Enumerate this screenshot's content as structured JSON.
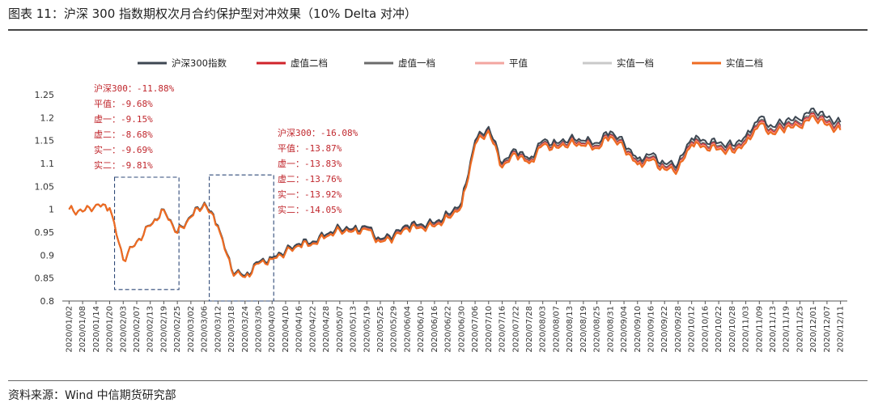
{
  "figure": {
    "title": "图表 11：沪深 300 指数期权次月合约保护型对冲效果（10% Delta 对冲）",
    "source": "资料来源：Wind 中信期货研究部"
  },
  "chart_data": {
    "type": "line",
    "ylim": [
      0.8,
      1.25
    ],
    "yticks": [
      "0.8",
      "0.85",
      "0.9",
      "0.95",
      "1",
      "1.05",
      "1.1",
      "1.15",
      "1.2",
      "1.25"
    ],
    "grid": false,
    "legend_position": "top",
    "x_labels": [
      "2020/01/02",
      "2020/01/08",
      "2020/01/14",
      "2020/01/20",
      "2020/02/03",
      "2020/02/07",
      "2020/02/13",
      "2020/02/19",
      "2020/02/25",
      "2020/03/02",
      "2020/03/06",
      "2020/03/12",
      "2020/03/18",
      "2020/03/24",
      "2020/03/30",
      "2020/04/03",
      "2020/04/10",
      "2020/04/16",
      "2020/04/22",
      "2020/04/28",
      "2020/05/07",
      "2020/05/13",
      "2020/05/19",
      "2020/05/25",
      "2020/05/29",
      "2020/06/04",
      "2020/06/10",
      "2020/06/16",
      "2020/06/22",
      "2020/06/30",
      "2020/07/06",
      "2020/07/10",
      "2020/07/16",
      "2020/07/22",
      "2020/07/28",
      "2020/08/03",
      "2020/08/07",
      "2020/08/13",
      "2020/08/19",
      "2020/08/25",
      "2020/08/31",
      "2020/09/04",
      "2020/09/10",
      "2020/09/16",
      "2020/09/22",
      "2020/09/28",
      "2020/10/12",
      "2020/10/16",
      "2020/10/22",
      "2020/10/28",
      "2020/11/03",
      "2020/11/09",
      "2020/11/13",
      "2020/11/19",
      "2020/11/25",
      "2020/12/01",
      "2020/12/07",
      "2020/12/11"
    ],
    "series": [
      {
        "name": "沪深300指数",
        "color": "#3d4752",
        "width": 2.0
      },
      {
        "name": "虚值二档",
        "color": "#d0232a",
        "width": 1.6
      },
      {
        "name": "虚值一档",
        "color": "#6b6b6b",
        "width": 1.6
      },
      {
        "name": "平值",
        "color": "#f3a6a0",
        "width": 1.8
      },
      {
        "name": "实值一档",
        "color": "#c9c9c9",
        "width": 1.8
      },
      {
        "name": "实值二档",
        "color": "#ee6b22",
        "width": 2.2
      }
    ],
    "base_path": [
      [
        "2020/01/02",
        1.0
      ],
      [
        "2020/01/08",
        0.995
      ],
      [
        "2020/01/14",
        1.01
      ],
      [
        "2020/01/20",
        1.003
      ],
      [
        "2020/02/03",
        0.89
      ],
      [
        "2020/02/07",
        0.93
      ],
      [
        "2020/02/13",
        0.965
      ],
      [
        "2020/02/19",
        1.0
      ],
      [
        "2020/02/25",
        0.95
      ],
      [
        "2020/03/02",
        0.985
      ],
      [
        "2020/03/06",
        1.015
      ],
      [
        "2020/03/12",
        0.965
      ],
      [
        "2020/03/18",
        0.87
      ],
      [
        "2020/03/24",
        0.855
      ],
      [
        "2020/03/30",
        0.885
      ],
      [
        "2020/04/03",
        0.895
      ],
      [
        "2020/04/10",
        0.91
      ],
      [
        "2020/04/16",
        0.925
      ],
      [
        "2020/04/22",
        0.93
      ],
      [
        "2020/04/28",
        0.945
      ],
      [
        "2020/05/07",
        0.96
      ],
      [
        "2020/05/13",
        0.958
      ],
      [
        "2020/05/19",
        0.962
      ],
      [
        "2020/05/25",
        0.935
      ],
      [
        "2020/05/29",
        0.945
      ],
      [
        "2020/06/04",
        0.965
      ],
      [
        "2020/06/10",
        0.968
      ],
      [
        "2020/06/16",
        0.97
      ],
      [
        "2020/06/22",
        0.99
      ],
      [
        "2020/06/30",
        1.015
      ],
      [
        "2020/07/06",
        1.15
      ],
      [
        "2020/07/10",
        1.18
      ],
      [
        "2020/07/16",
        1.1
      ],
      [
        "2020/07/22",
        1.13
      ],
      [
        "2020/07/28",
        1.11
      ],
      [
        "2020/08/03",
        1.15
      ],
      [
        "2020/08/07",
        1.145
      ],
      [
        "2020/08/13",
        1.155
      ],
      [
        "2020/08/19",
        1.15
      ],
      [
        "2020/08/25",
        1.145
      ],
      [
        "2020/08/31",
        1.17
      ],
      [
        "2020/09/04",
        1.145
      ],
      [
        "2020/09/10",
        1.11
      ],
      [
        "2020/09/16",
        1.12
      ],
      [
        "2020/09/22",
        1.1
      ],
      [
        "2020/09/28",
        1.1
      ],
      [
        "2020/10/12",
        1.155
      ],
      [
        "2020/10/16",
        1.15
      ],
      [
        "2020/10/22",
        1.145
      ],
      [
        "2020/10/28",
        1.14
      ],
      [
        "2020/11/03",
        1.16
      ],
      [
        "2020/11/09",
        1.2
      ],
      [
        "2020/11/13",
        1.18
      ],
      [
        "2020/11/19",
        1.195
      ],
      [
        "2020/11/25",
        1.195
      ],
      [
        "2020/12/01",
        1.22
      ],
      [
        "2020/12/07",
        1.2
      ],
      [
        "2020/12/11",
        1.19
      ]
    ],
    "offsets": [
      0.0,
      -0.012,
      -0.008,
      -0.015,
      -0.013,
      -0.018
    ],
    "annotations": [
      {
        "lines": [
          "沪深300：-11.88%",
          "平值：-9.68%",
          "虚一：-9.15%",
          "虚二：-8.68%",
          "实一：-9.69%",
          "实二：-9.81%"
        ],
        "box_dates": [
          "2020/01/20",
          "2020/02/25"
        ],
        "box_y": [
          0.825,
          1.07
        ]
      },
      {
        "lines": [
          "沪深300：-16.08%",
          "平值：-13.87%",
          "虚一：-13.83%",
          "虚二：-13.76%",
          "实一：-13.92%",
          "实二：-14.05%"
        ],
        "box_dates": [
          "2020/03/06",
          "2020/04/03"
        ],
        "box_y": [
          0.8,
          1.075
        ]
      }
    ]
  }
}
